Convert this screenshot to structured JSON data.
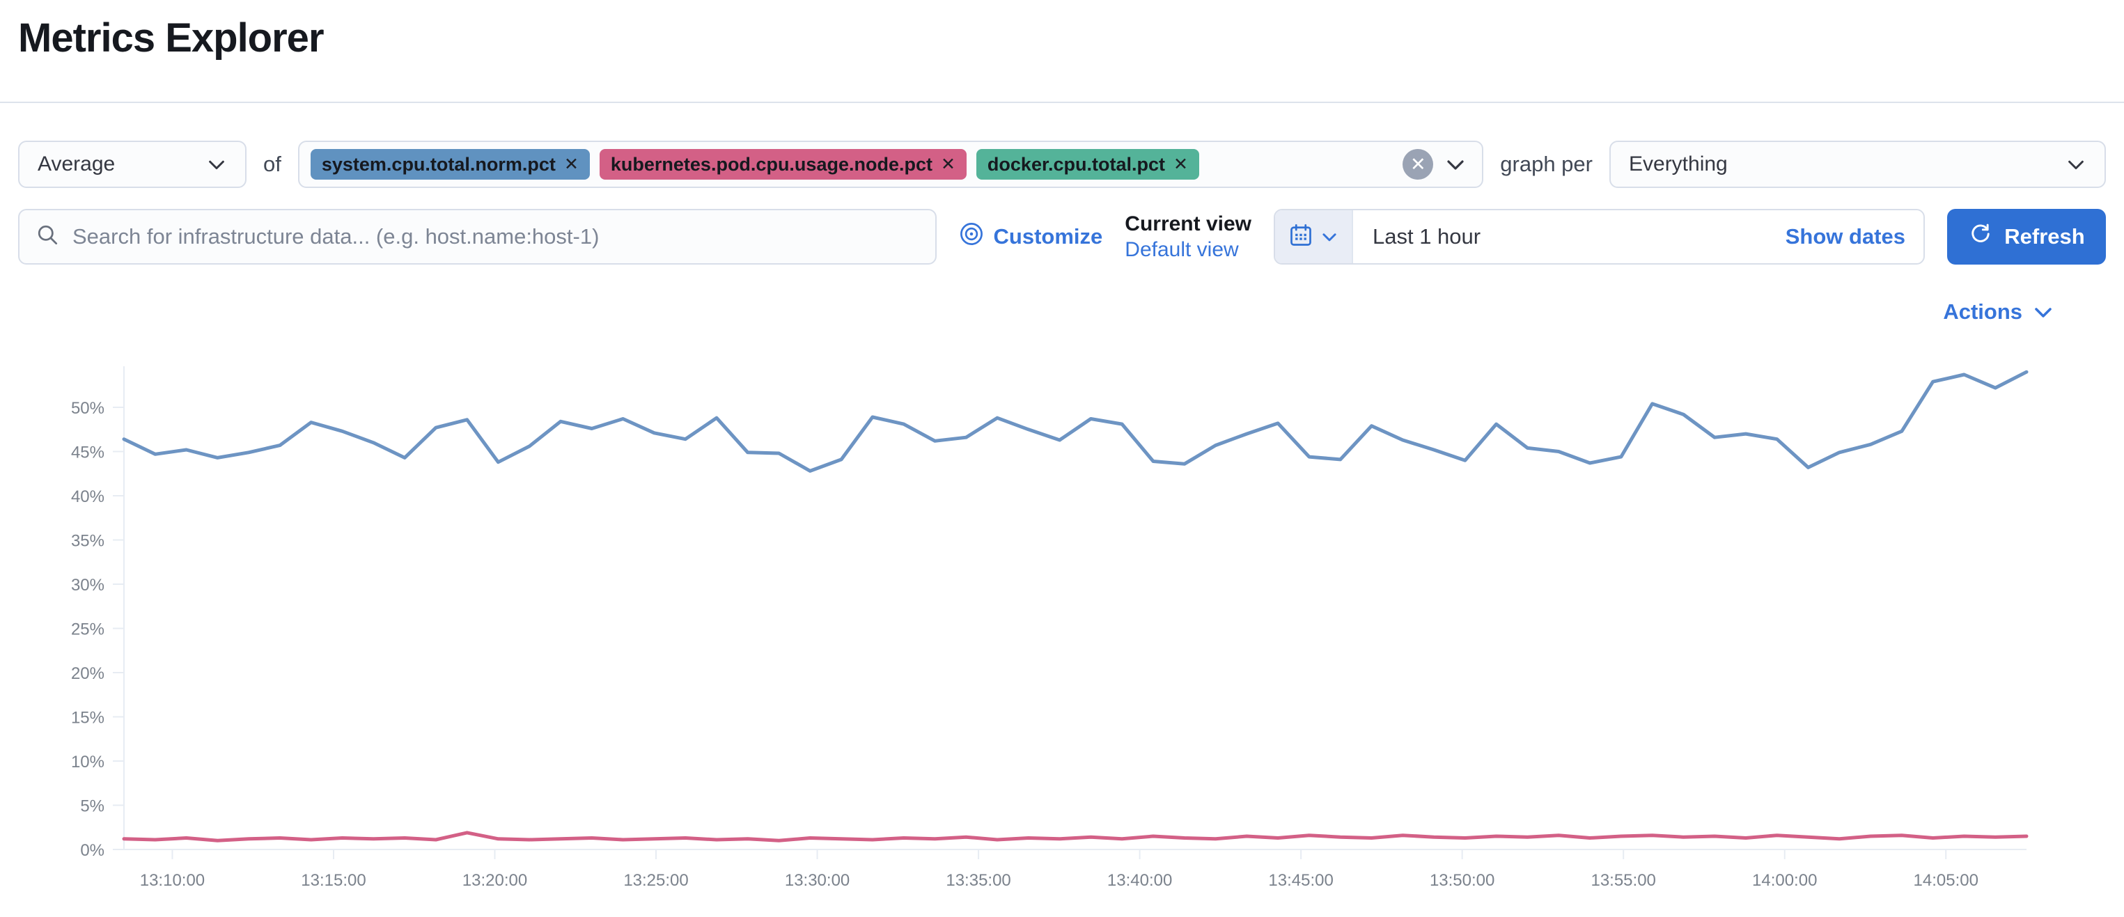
{
  "page": {
    "title": "Metrics Explorer"
  },
  "toolbar": {
    "aggregation": {
      "value": "Average"
    },
    "of_label": "of",
    "metrics": [
      {
        "label": "system.cpu.total.norm.pct",
        "color": "#6092C0",
        "remove_glyph": "✕"
      },
      {
        "label": "kubernetes.pod.cpu.usage.node.pct",
        "color": "#D36086",
        "remove_glyph": "✕"
      },
      {
        "label": "docker.cpu.total.pct",
        "color": "#54B399",
        "remove_glyph": "✕"
      }
    ],
    "clear_glyph": "✕",
    "graph_per_label": "graph per",
    "group_by": {
      "value": "Everything"
    }
  },
  "filters": {
    "search_placeholder": "Search for infrastructure data... (e.g. host.name:host-1)",
    "customize_label": "Customize",
    "current_view_label": "Current view",
    "default_view_label": "Default view",
    "time_range_value": "Last 1 hour",
    "show_dates_label": "Show dates",
    "refresh_label": "Refresh"
  },
  "actions": {
    "label": "Actions"
  },
  "chart_data": {
    "type": "line",
    "title": "",
    "xlabel": "",
    "ylabel": "",
    "unit": "%",
    "grid": false,
    "legend": "none",
    "y_axis": {
      "min": 0,
      "max_visible": 54.5,
      "tick_step": 5,
      "tick_labels": [
        "0%",
        "5%",
        "10%",
        "15%",
        "20%",
        "25%",
        "30%",
        "35%",
        "40%",
        "45%",
        "50%"
      ]
    },
    "x_axis": {
      "start": "13:08:30",
      "end": "14:07:30",
      "tick_labels": [
        "13:10:00",
        "13:15:00",
        "13:20:00",
        "13:25:00",
        "13:30:00",
        "13:35:00",
        "13:40:00",
        "13:45:00",
        "13:50:00",
        "13:55:00",
        "14:00:00",
        "14:05:00"
      ]
    },
    "series": [
      {
        "name": "system.cpu.total.norm.pct (avg)",
        "color": "#6d94c3",
        "values": [
          46.4,
          44.7,
          45.2,
          44.3,
          44.9,
          45.7,
          48.3,
          47.3,
          46.0,
          44.3,
          47.7,
          48.6,
          43.8,
          45.6,
          48.4,
          47.6,
          48.7,
          47.1,
          46.4,
          48.8,
          44.9,
          44.8,
          42.8,
          44.1,
          48.9,
          48.1,
          46.2,
          46.6,
          48.8,
          47.5,
          46.3,
          48.7,
          48.1,
          43.9,
          43.6,
          45.7,
          47.0,
          48.2,
          44.4,
          44.1,
          47.9,
          46.3,
          45.2,
          44.0,
          48.1,
          45.4,
          45.0,
          43.7,
          44.4,
          50.4,
          49.2,
          46.6,
          47.0,
          46.4,
          43.2,
          44.9,
          45.8,
          47.3,
          52.9,
          53.7,
          52.2,
          54.0
        ]
      },
      {
        "name": "kubernetes.pod.cpu.usage.node.pct (avg)",
        "color": "#d36086",
        "values": [
          1.2,
          1.1,
          1.3,
          1.0,
          1.2,
          1.3,
          1.1,
          1.3,
          1.2,
          1.3,
          1.1,
          1.9,
          1.2,
          1.1,
          1.2,
          1.3,
          1.1,
          1.2,
          1.3,
          1.1,
          1.2,
          1.0,
          1.3,
          1.2,
          1.1,
          1.3,
          1.2,
          1.4,
          1.1,
          1.3,
          1.2,
          1.4,
          1.2,
          1.5,
          1.3,
          1.2,
          1.5,
          1.3,
          1.6,
          1.4,
          1.3,
          1.6,
          1.4,
          1.3,
          1.5,
          1.4,
          1.6,
          1.3,
          1.5,
          1.6,
          1.4,
          1.5,
          1.3,
          1.6,
          1.4,
          1.2,
          1.5,
          1.6,
          1.3,
          1.5,
          1.4,
          1.5
        ]
      }
    ]
  }
}
